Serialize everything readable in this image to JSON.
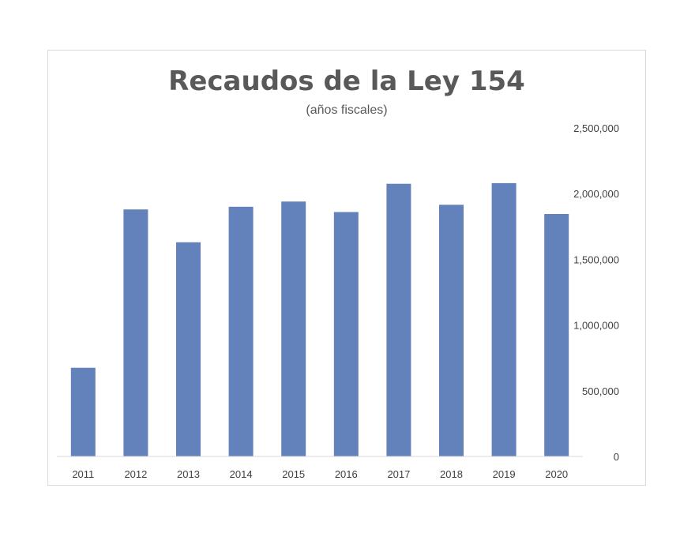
{
  "chart_data": {
    "type": "bar",
    "title": "Recaudos de la Ley 154",
    "subtitle": "(años fiscales)",
    "categories": [
      "2011",
      "2012",
      "2013",
      "2014",
      "2015",
      "2016",
      "2017",
      "2018",
      "2019",
      "2020"
    ],
    "values": [
      675000,
      1880000,
      1630000,
      1900000,
      1940000,
      1860000,
      2075000,
      1915000,
      2080000,
      1845000
    ],
    "ylim": [
      0,
      2500000
    ],
    "yticks": [
      0,
      500000,
      1000000,
      1500000,
      2000000,
      2500000
    ],
    "ytick_labels": [
      "0",
      "500,000",
      "1,000,000",
      "1,500,000",
      "2,000,000",
      "2,500,000"
    ],
    "y_axis_position": "right",
    "grid": false,
    "legend": "none",
    "bar_color": "#6381BB"
  }
}
